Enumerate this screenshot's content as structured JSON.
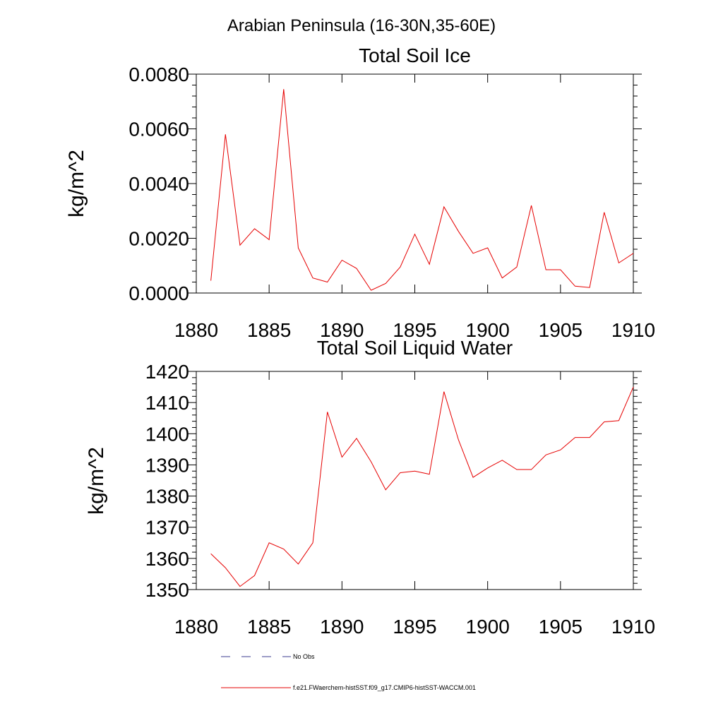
{
  "suptitle": "Arabian Peninsula (16-30N,35-60E)",
  "legend": {
    "no_obs_label": "No Obs",
    "model_label": "f.e21.FWaerchem-histSST.f09_g17.CMIP6-histSST-WACCM.001",
    "no_obs_color": "#3b3b8f",
    "model_color": "#e60000"
  },
  "chart_data": [
    {
      "type": "line",
      "title": "Total Soil Ice",
      "xlabel": "",
      "ylabel": "kg/m^2",
      "xlim": [
        1880,
        1910
      ],
      "ylim": [
        0,
        0.008
      ],
      "xticks": [
        1880,
        1885,
        1890,
        1895,
        1900,
        1905,
        1910
      ],
      "xtick_labels": [
        "1880",
        "1885",
        "1890",
        "1895",
        "1900",
        "1905",
        "1910"
      ],
      "yticks": [
        0,
        0.002,
        0.004,
        0.006,
        0.008
      ],
      "ytick_labels": [
        "0.0000",
        "0.0020",
        "0.0040",
        "0.0060",
        "0.0080"
      ],
      "x": [
        1881,
        1882,
        1883,
        1884,
        1885,
        1886,
        1887,
        1888,
        1889,
        1890,
        1891,
        1892,
        1893,
        1894,
        1895,
        1896,
        1897,
        1898,
        1899,
        1900,
        1901,
        1902,
        1903,
        1904,
        1905,
        1906,
        1907,
        1908,
        1909,
        1910
      ],
      "series": [
        {
          "color": "#e60000",
          "values": [
            0.00045,
            0.0058,
            0.00175,
            0.00235,
            0.00195,
            0.00745,
            0.00165,
            0.00055,
            0.0004,
            0.0012,
            0.0009,
            0.0001,
            0.00035,
            0.00095,
            0.00215,
            0.00105,
            0.00315,
            0.00225,
            0.00145,
            0.00165,
            0.00055,
            0.00095,
            0.0032,
            0.00085,
            0.00085,
            0.00025,
            0.0002,
            0.00295,
            0.0011,
            0.00145
          ]
        }
      ]
    },
    {
      "type": "line",
      "title": "Total Soil Liquid Water",
      "xlabel": "",
      "ylabel": "kg/m^2",
      "xlim": [
        1880,
        1910
      ],
      "ylim": [
        1350,
        1420
      ],
      "xticks": [
        1880,
        1885,
        1890,
        1895,
        1900,
        1905,
        1910
      ],
      "xtick_labels": [
        "1880",
        "1885",
        "1890",
        "1895",
        "1900",
        "1905",
        "1910"
      ],
      "yticks": [
        1350,
        1360,
        1370,
        1380,
        1390,
        1400,
        1410,
        1420
      ],
      "ytick_labels": [
        "1350",
        "1360",
        "1370",
        "1380",
        "1390",
        "1400",
        "1410",
        "1420"
      ],
      "x": [
        1881,
        1882,
        1883,
        1884,
        1885,
        1886,
        1887,
        1888,
        1889,
        1890,
        1891,
        1892,
        1893,
        1894,
        1895,
        1896,
        1897,
        1898,
        1899,
        1900,
        1901,
        1902,
        1903,
        1904,
        1905,
        1906,
        1907,
        1908,
        1909,
        1910
      ],
      "series": [
        {
          "color": "#e60000",
          "values": [
            1361.5,
            1357,
            1351,
            1354.5,
            1365,
            1363,
            1358.2,
            1365,
            1407,
            1392.5,
            1398.5,
            1391,
            1382,
            1387.5,
            1388,
            1387,
            1413.5,
            1398,
            1386,
            1389,
            1391.5,
            1388.5,
            1388.5,
            1393.2,
            1394.8,
            1398.8,
            1398.8,
            1403.8,
            1404.2,
            1415
          ]
        }
      ]
    }
  ]
}
